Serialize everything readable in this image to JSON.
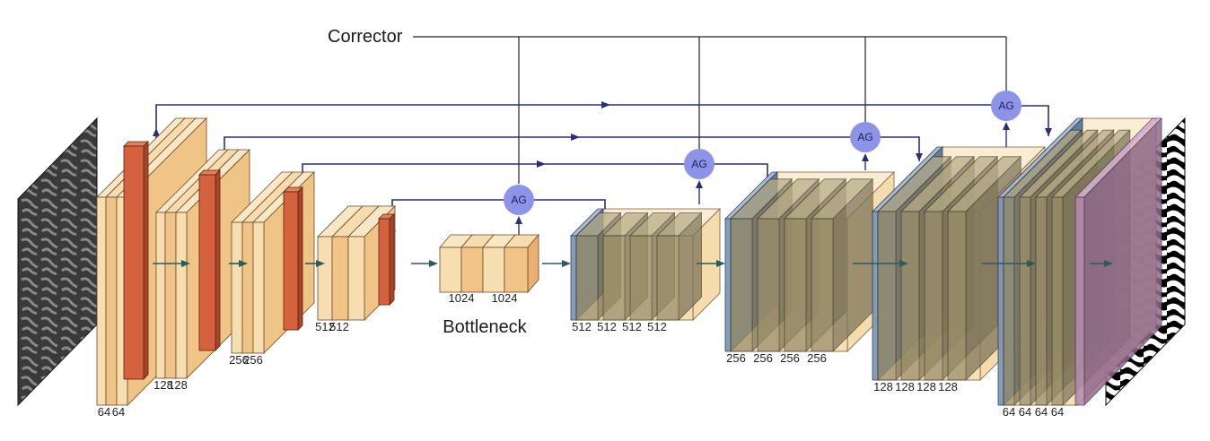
{
  "labels": {
    "corrector": "Corrector",
    "bottleneck": "Bottleneck",
    "ag": "AG"
  },
  "encoder": [
    {
      "channels": [
        "64",
        "64"
      ]
    },
    {
      "channels": [
        "128",
        "128"
      ]
    },
    {
      "channels": [
        "256",
        "256"
      ]
    },
    {
      "channels": [
        "512",
        "512"
      ]
    }
  ],
  "bottleneck_block": {
    "channels": [
      "1024",
      "1024"
    ]
  },
  "decoder": [
    {
      "channels": [
        "512",
        "512",
        "512",
        "512"
      ]
    },
    {
      "channels": [
        "256",
        "256",
        "256",
        "256"
      ]
    },
    {
      "channels": [
        "128",
        "128",
        "128",
        "128"
      ]
    },
    {
      "channels": [
        "64",
        "64",
        "64",
        "64"
      ]
    }
  ],
  "colors": {
    "feature_light": "#f6deb0",
    "feature_mid": "#f0c486",
    "pool": "#d5623e",
    "decoder_blue": "#7f98b8",
    "decoder_olive": "#9b8f6a",
    "output_purple": "#b38bb0",
    "ag_fill": "#8d93e6",
    "skip_line": "#2a2f7a",
    "flow_arrow": "#2d5a5a"
  }
}
